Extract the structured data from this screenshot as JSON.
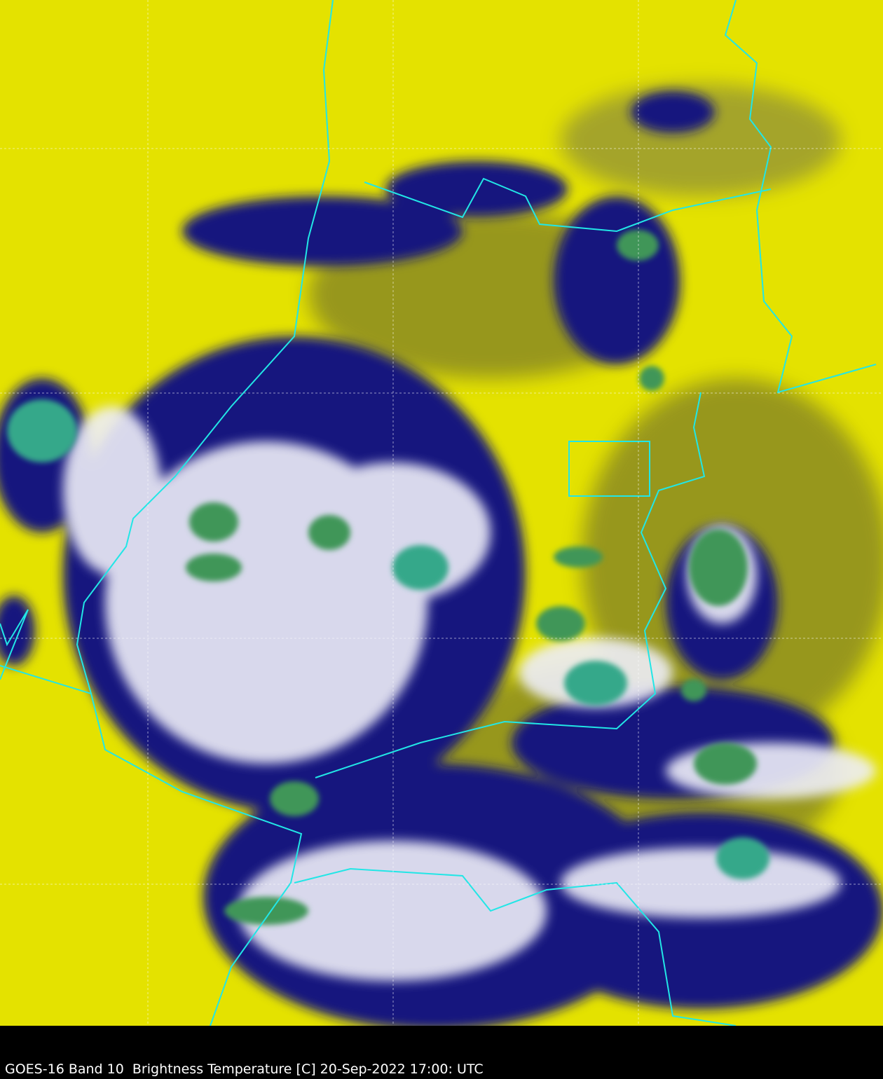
{
  "caption": "GOES-16 Band 10  Brightness Temperature [C] 20-Sep-2022 17:00: UTC",
  "colors": {
    "warm_background": "#e8e600",
    "dry_olive": "#7a7a20",
    "cloud_dark_blue": "#10107a",
    "cloud_white": "#f0f0f8",
    "cold_core_green": "#3a9a5a",
    "coldest_teal": "#30b090",
    "border_line": "#20e0e0",
    "grid_line": "#ffffff"
  },
  "map": {
    "layers": [
      "satellite-imagery",
      "political-borders",
      "lat-lon-grid"
    ]
  }
}
